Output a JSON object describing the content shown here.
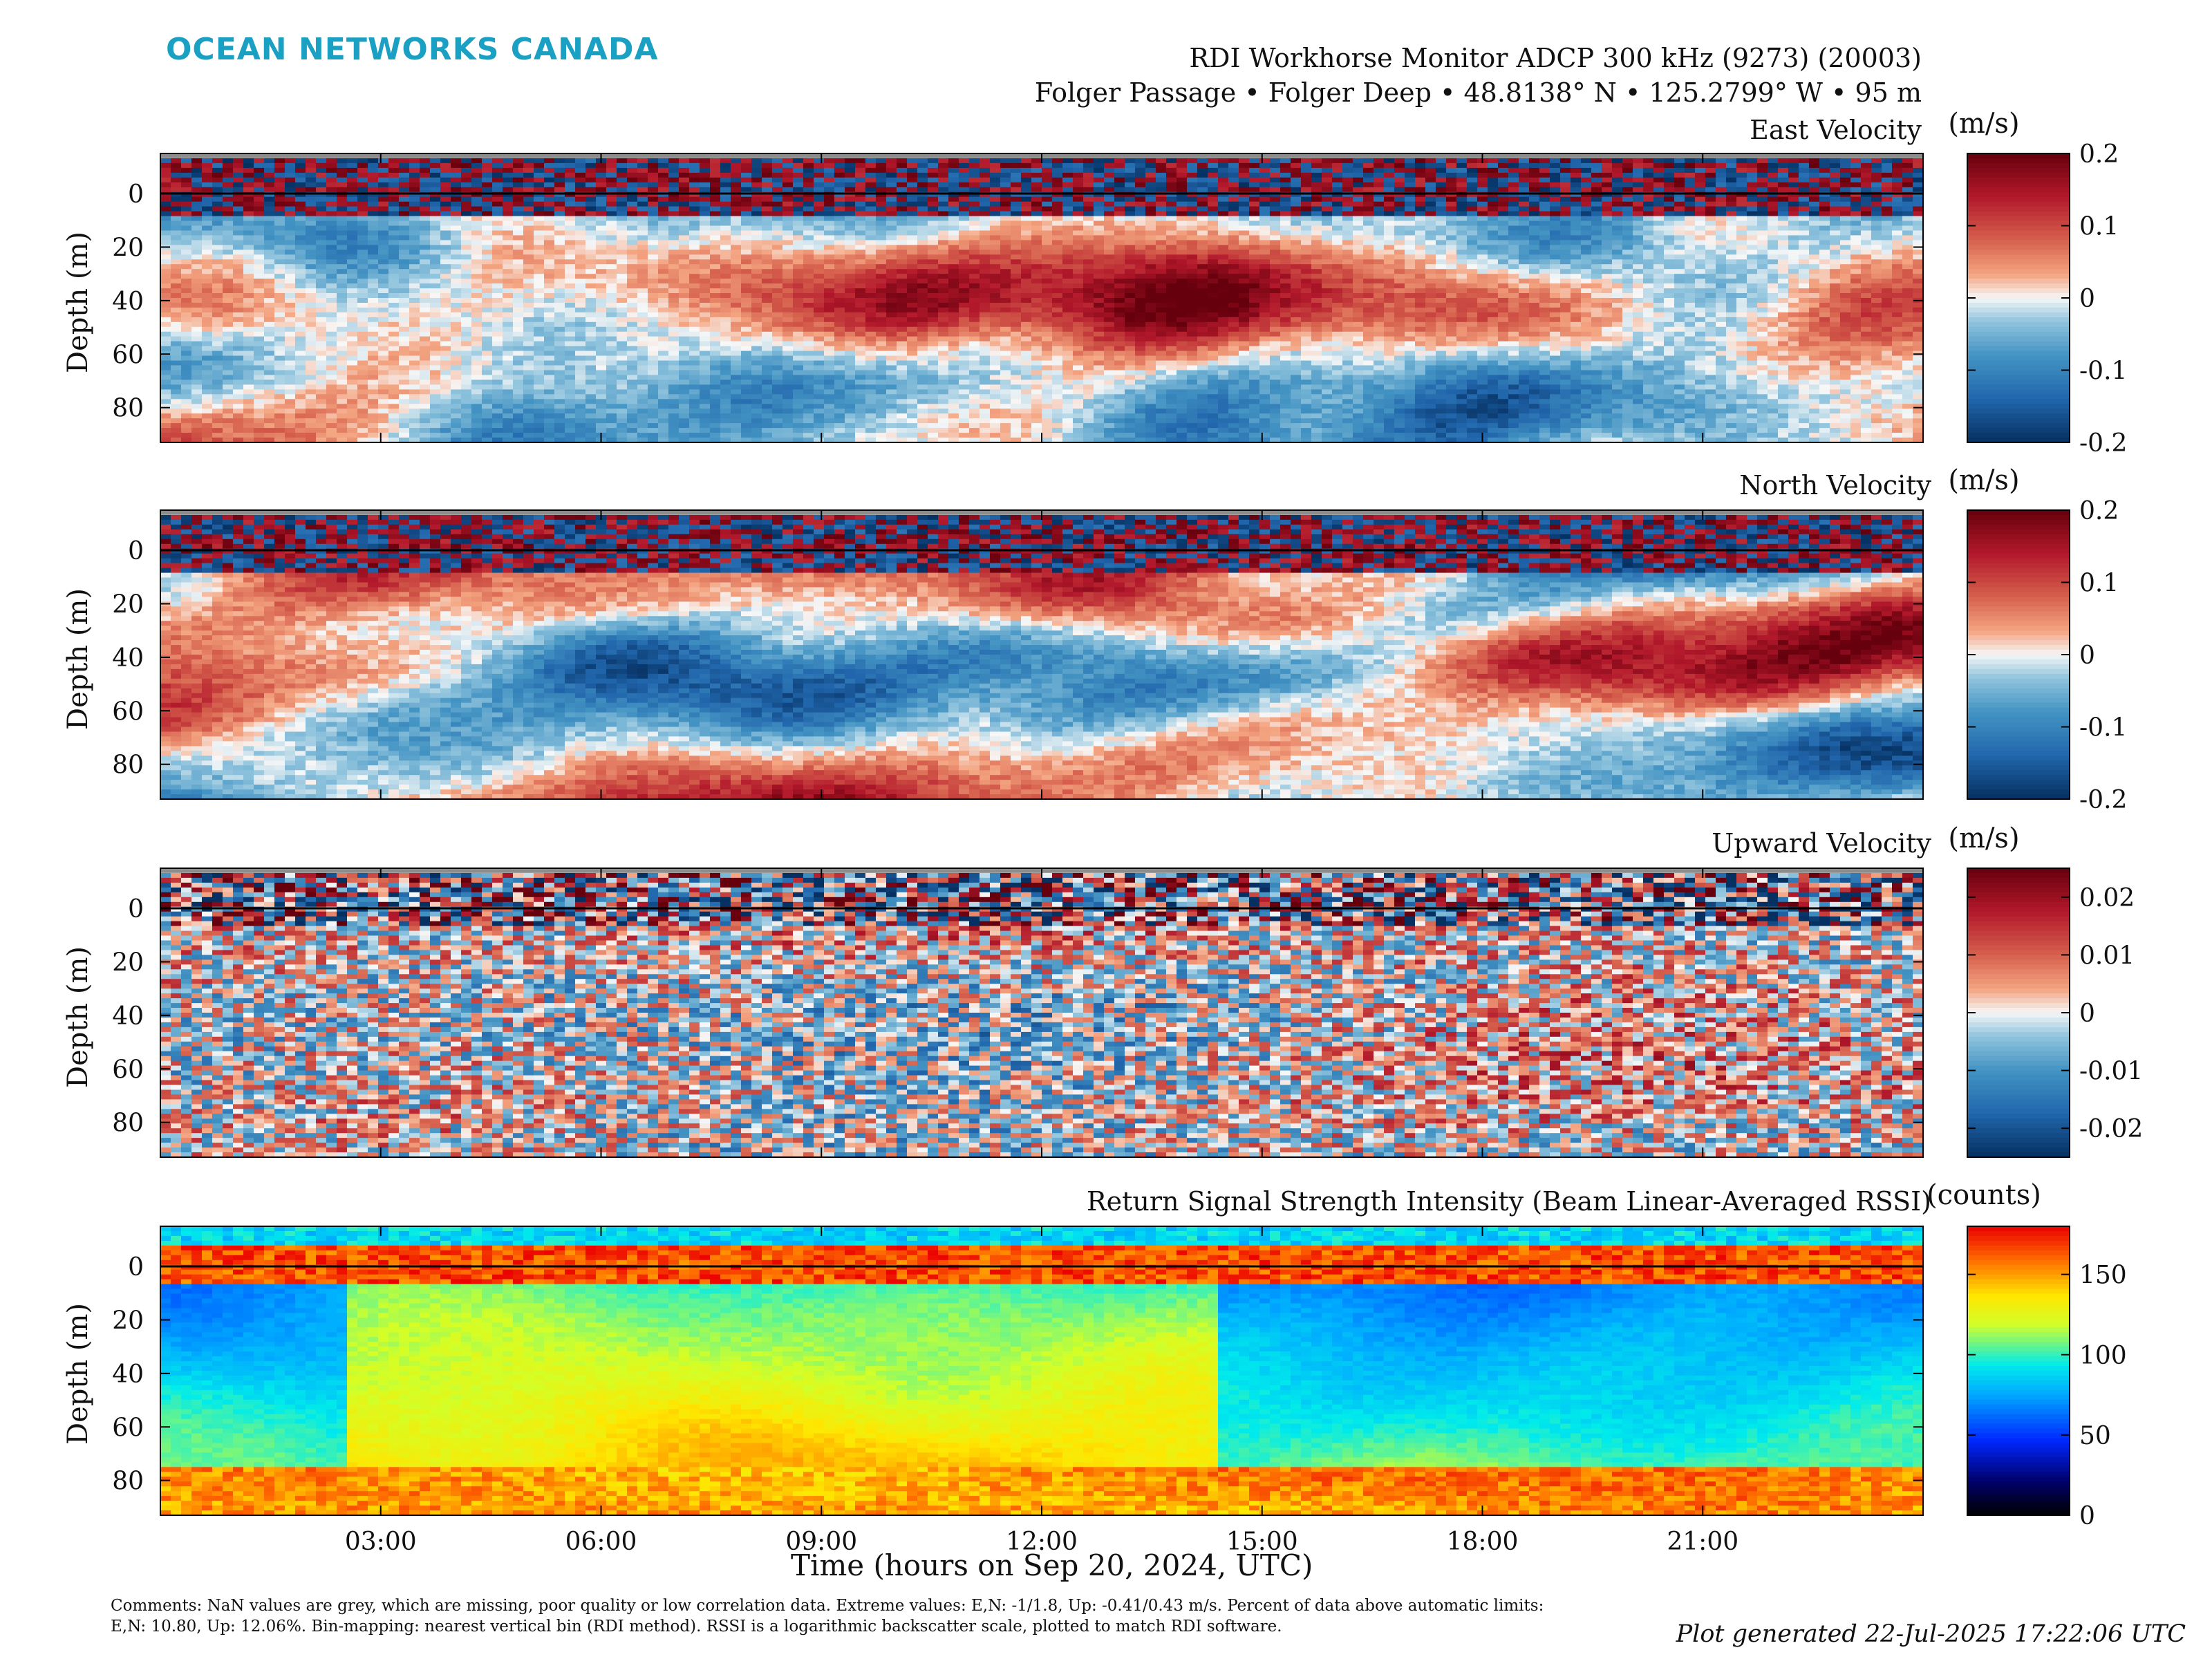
{
  "logo_text": "OCEAN NETWORKS CANADA",
  "header": {
    "line1": "RDI Workhorse Monitor ADCP 300 kHz (9273) (20003)",
    "line2": "Folger Passage • Folger Deep • 48.8138° N • 125.2799° W • 95 m"
  },
  "chart_data": [
    {
      "type": "heatmap",
      "title": "East Velocity",
      "ylabel": "Depth (m)",
      "y_ticks": [
        0,
        20,
        40,
        60,
        80
      ],
      "ylim": [
        -15,
        93
      ],
      "xlim": [
        0,
        24
      ],
      "colorbar": {
        "unit": "(m/s)",
        "ticks": [
          "0.2",
          "0.1",
          "0",
          "-0.1",
          "-0.2"
        ],
        "range": [
          -0.2,
          0.2
        ],
        "colormap": "blue-white-red"
      },
      "nan_color": "#8c8c8c"
    },
    {
      "type": "heatmap",
      "title": "North Velocity",
      "ylabel": "Depth (m)",
      "y_ticks": [
        0,
        20,
        40,
        60,
        80
      ],
      "ylim": [
        -15,
        93
      ],
      "xlim": [
        0,
        24
      ],
      "colorbar": {
        "unit": "(m/s)",
        "ticks": [
          "0.2",
          "0.1",
          "0",
          "-0.1",
          "-0.2"
        ],
        "range": [
          -0.2,
          0.2
        ],
        "colormap": "blue-white-red"
      },
      "nan_color": "#8c8c8c"
    },
    {
      "type": "heatmap",
      "title": "Upward Velocity",
      "ylabel": "Depth (m)",
      "y_ticks": [
        0,
        20,
        40,
        60,
        80
      ],
      "ylim": [
        -15,
        93
      ],
      "xlim": [
        0,
        24
      ],
      "colorbar": {
        "unit": "(m/s)",
        "ticks": [
          "0.02",
          "0.01",
          "0",
          "-0.01",
          "-0.02"
        ],
        "range": [
          -0.025,
          0.025
        ],
        "colormap": "blue-white-red"
      },
      "nan_color": "#8c8c8c"
    },
    {
      "type": "heatmap",
      "title": "Return Signal Strength Intensity (Beam Linear-Averaged RSSI)",
      "ylabel": "Depth (m)",
      "y_ticks": [
        0,
        20,
        40,
        60,
        80
      ],
      "ylim": [
        -15,
        93
      ],
      "xlim": [
        0,
        24
      ],
      "colorbar": {
        "unit": "(counts)",
        "ticks": [
          "150",
          "100",
          "50",
          "0"
        ],
        "range": [
          0,
          180
        ],
        "colormap": "jet"
      }
    }
  ],
  "x_axis": {
    "label": "Time (hours on Sep 20, 2024, UTC)",
    "ticks": [
      "03:00",
      "06:00",
      "09:00",
      "12:00",
      "15:00",
      "18:00",
      "21:00"
    ]
  },
  "comments": "Comments: NaN values are grey, which are missing, poor quality or low correlation data. Extreme values: E,N: -1/1.8, Up: -0.41/0.43 m/s. Percent of data above automatic limits: E,N: 10.80, Up: 12.06%. Bin-mapping: nearest vertical bin (RDI method). RSSI is a logarithmic backscatter scale, plotted to match RDI software.",
  "generated": "Plot generated 22-Jul-2025 17:22:06 UTC"
}
